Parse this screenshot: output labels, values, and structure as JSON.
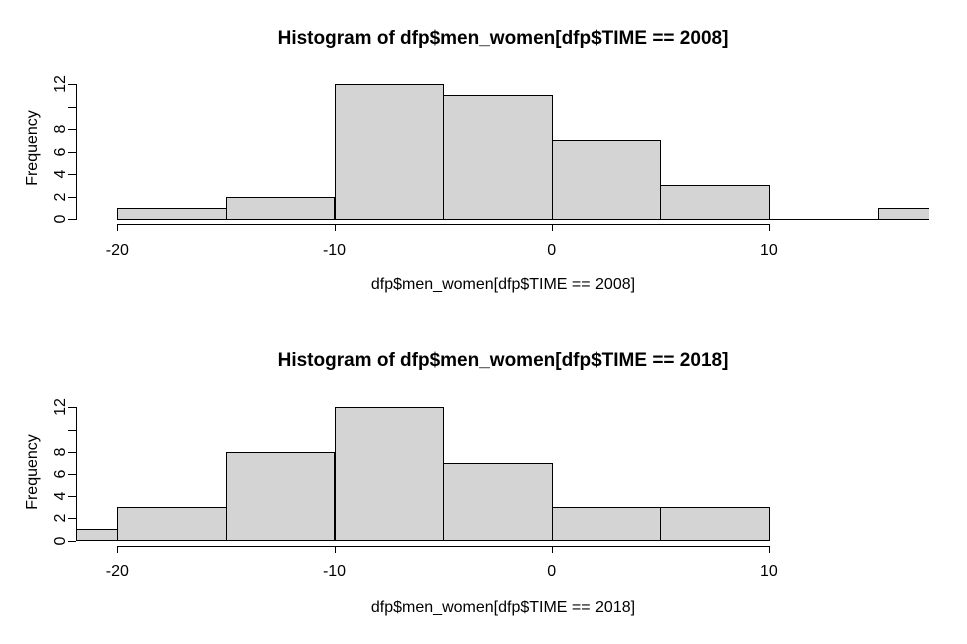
{
  "colors": {
    "background": "#ffffff",
    "bar_fill": "#d4d4d4",
    "bar_border": "#000000",
    "text": "#000000"
  },
  "chart_data": [
    {
      "type": "bar",
      "subtype": "histogram",
      "title": "Histogram of dfp$men_women[dfp$TIME == 2008]",
      "xlabel": "dfp$men_women[dfp$TIME == 2008]",
      "ylabel": "Frequency",
      "bin_width": 5,
      "bins": [
        {
          "from": -20,
          "to": -15,
          "count": 1
        },
        {
          "from": -15,
          "to": -10,
          "count": 2
        },
        {
          "from": -10,
          "to": -5,
          "count": 12
        },
        {
          "from": -5,
          "to": 0,
          "count": 11
        },
        {
          "from": 0,
          "to": 5,
          "count": 7
        },
        {
          "from": 5,
          "to": 10,
          "count": 3
        },
        {
          "from": 10,
          "to": 15,
          "count": 0
        },
        {
          "from": 15,
          "to": 20,
          "count": 1
        }
      ],
      "x_ticks": [
        {
          "value": -20,
          "label": "-20"
        },
        {
          "value": -10,
          "label": "-10"
        },
        {
          "value": 0,
          "label": "0"
        },
        {
          "value": 10,
          "label": "10"
        }
      ],
      "y_ticks": [
        {
          "value": 0,
          "label": "0"
        },
        {
          "value": 2,
          "label": "2"
        },
        {
          "value": 4,
          "label": "4"
        },
        {
          "value": 6,
          "label": "6"
        },
        {
          "value": 8,
          "label": "8"
        },
        {
          "value": 10,
          "label": ""
        },
        {
          "value": 12,
          "label": "12"
        }
      ],
      "ylim": [
        0,
        12
      ],
      "x_view_range": [
        -21.9,
        17.4
      ],
      "grid": false,
      "legend": "none",
      "note": "rightmost bar (15 to 20, count 1) is clipped by the right plot edge"
    },
    {
      "type": "bar",
      "subtype": "histogram",
      "title": "Histogram of dfp$men_women[dfp$TIME == 2018]",
      "xlabel": "dfp$men_women[dfp$TIME == 2018]",
      "ylabel": "Frequency",
      "bin_width": 5,
      "bins": [
        {
          "from": -25,
          "to": -20,
          "count": 1
        },
        {
          "from": -20,
          "to": -15,
          "count": 3
        },
        {
          "from": -15,
          "to": -10,
          "count": 8
        },
        {
          "from": -10,
          "to": -5,
          "count": 12
        },
        {
          "from": -5,
          "to": 0,
          "count": 7
        },
        {
          "from": 0,
          "to": 5,
          "count": 3
        },
        {
          "from": 5,
          "to": 10,
          "count": 3
        }
      ],
      "x_ticks": [
        {
          "value": -20,
          "label": "-20"
        },
        {
          "value": -10,
          "label": "-10"
        },
        {
          "value": 0,
          "label": "0"
        },
        {
          "value": 10,
          "label": "10"
        }
      ],
      "y_ticks": [
        {
          "value": 0,
          "label": "0"
        },
        {
          "value": 2,
          "label": "2"
        },
        {
          "value": 4,
          "label": "4"
        },
        {
          "value": 6,
          "label": "6"
        },
        {
          "value": 8,
          "label": "8"
        },
        {
          "value": 10,
          "label": ""
        },
        {
          "value": 12,
          "label": "12"
        }
      ],
      "ylim": [
        0,
        12
      ],
      "x_view_range": [
        -21.9,
        17.4
      ],
      "grid": false,
      "legend": "none",
      "note": "leftmost bar (-25 to -20, count 1) is clipped by the left plot edge"
    }
  ]
}
